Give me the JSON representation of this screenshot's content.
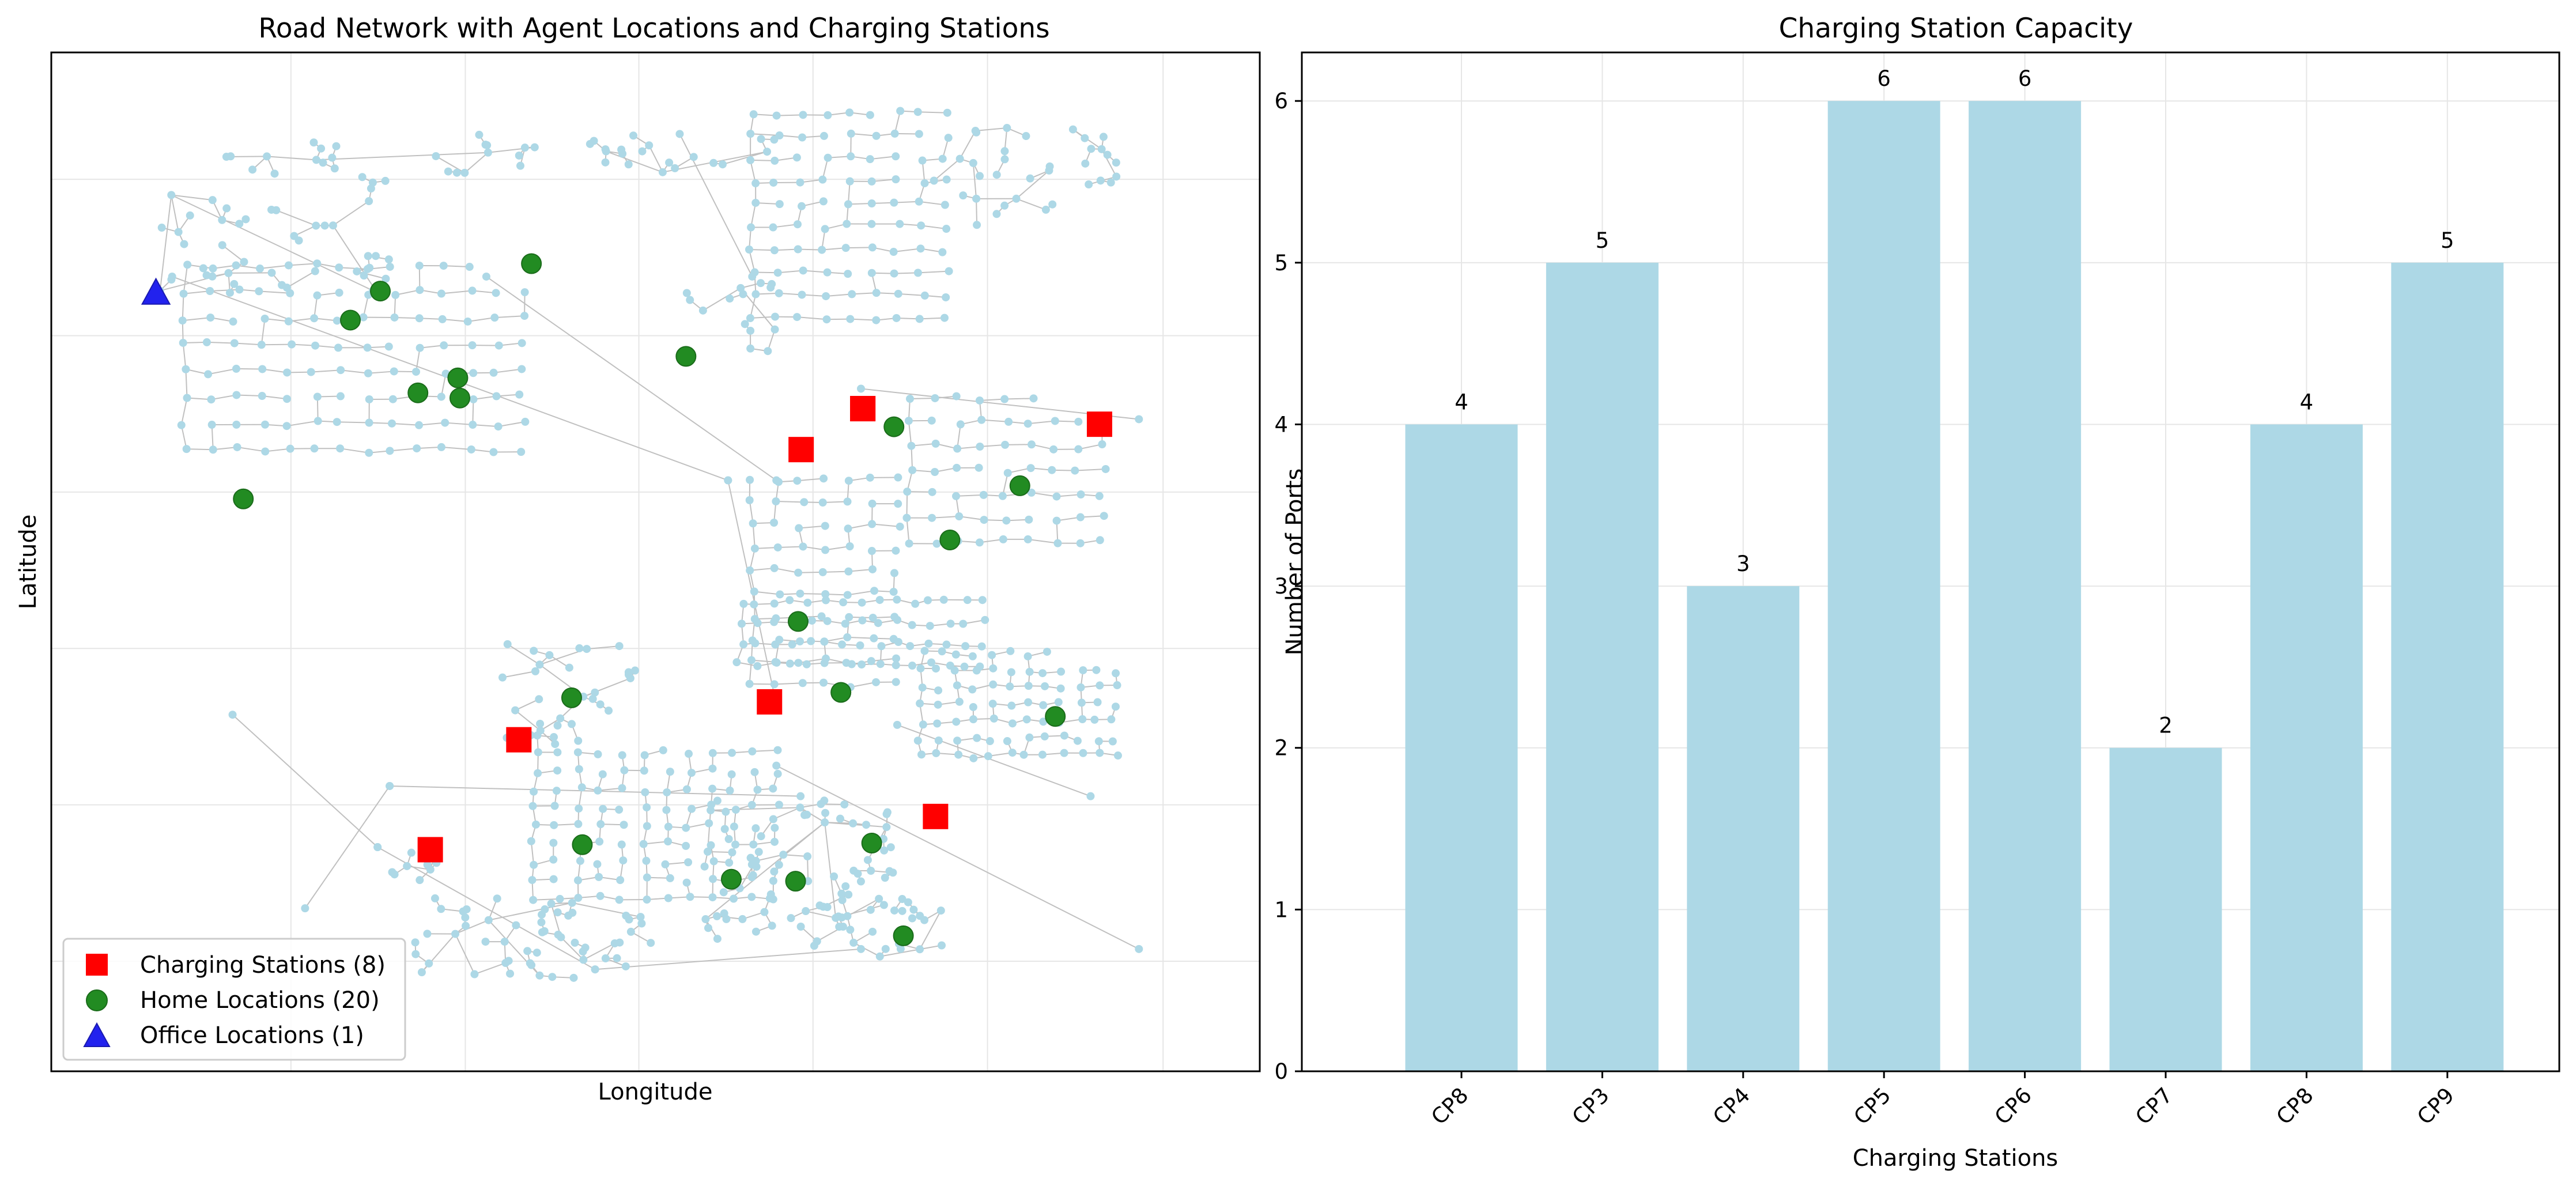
{
  "chart_data": [
    {
      "type": "scatter",
      "title": "Road Network with Agent Locations and Charging Stations",
      "xlabel": "Longitude",
      "ylabel": "Latitude",
      "grid": true,
      "ticks_visible": false,
      "legend_placement": "lower-left",
      "legend": [
        {
          "label": "Charging Stations (8)",
          "marker": "square",
          "color": "#ff0000"
        },
        {
          "label": "Home Locations (20)",
          "marker": "circle",
          "color": "#228b22"
        },
        {
          "label": "Office Locations (1)",
          "marker": "triangle",
          "color": "#2222ee"
        }
      ],
      "road_network": {
        "node_color": "#add8e6",
        "edge_color": "#c0c0c0"
      },
      "series": [
        {
          "name": "Charging Stations (8)",
          "points": [
            [
              0.6715,
              0.6504
            ],
            [
              0.6205,
              0.6102
            ],
            [
              0.8674,
              0.6351
            ],
            [
              0.5943,
              0.3626
            ],
            [
              0.3869,
              0.3254
            ],
            [
              0.7317,
              0.2501
            ],
            [
              0.3136,
              0.2175
            ],
            [
              0.6715,
              0.6504
            ]
          ]
        },
        {
          "name": "Home Locations (20)",
          "points": [
            [
              0.2723,
              0.7658
            ],
            [
              0.3973,
              0.7927
            ],
            [
              0.2475,
              0.7373
            ],
            [
              0.5252,
              0.7017
            ],
            [
              0.3364,
              0.6806
            ],
            [
              0.3034,
              0.6659
            ],
            [
              0.3381,
              0.6608
            ],
            [
              0.6973,
              0.6326
            ],
            [
              0.1589,
              0.5618
            ],
            [
              0.8015,
              0.5747
            ],
            [
              0.7436,
              0.5215
            ],
            [
              0.618,
              0.4415
            ],
            [
              0.4306,
              0.3666
            ],
            [
              0.6534,
              0.3719
            ],
            [
              0.8308,
              0.3483
            ],
            [
              0.4394,
              0.2224
            ],
            [
              0.6789,
              0.224
            ],
            [
              0.5627,
              0.1885
            ],
            [
              0.6159,
              0.1866
            ],
            [
              0.7051,
              0.133
            ]
          ]
        },
        {
          "name": "Office Locations (1)",
          "points": [
            [
              0.0866,
              0.7643
            ]
          ]
        }
      ]
    },
    {
      "type": "bar",
      "title": "Charging Station Capacity",
      "xlabel": "Charging Stations",
      "ylabel": "Number of Ports",
      "categories": [
        "CP8",
        "CP3",
        "CP4",
        "CP5",
        "CP6",
        "CP7",
        "CP8",
        "CP9"
      ],
      "values": [
        4,
        5,
        3,
        6,
        6,
        2,
        4,
        5
      ],
      "ylim": [
        0,
        6.3
      ],
      "yticks": [
        0,
        1,
        2,
        3,
        4,
        5,
        6
      ],
      "bar_color": "#add8e6",
      "grid": true
    }
  ]
}
